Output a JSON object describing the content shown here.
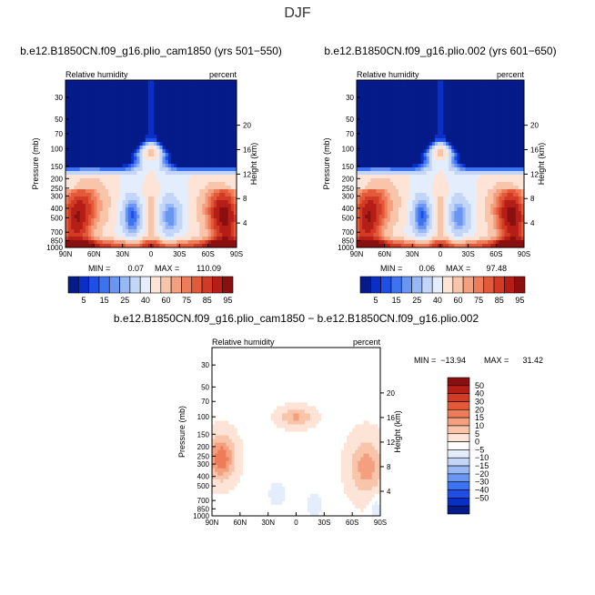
{
  "page": {
    "title": "DJF"
  },
  "chart_data": [
    {
      "type": "heatmap",
      "title": "b.e12.B1850CN.f09_g16.plio_cam1850 (yrs 501−550)",
      "left_subtitle": "Relative humidity",
      "right_subtitle": "percent",
      "xlabel": "",
      "ylabel": "Pressure (mb)",
      "ylabel_right": "Height (km)",
      "x_tick_labels": [
        "90N",
        "60N",
        "30N",
        "0",
        "30S",
        "60S",
        "90S"
      ],
      "x_tick_values": [
        90,
        60,
        30,
        0,
        -30,
        -60,
        -90
      ],
      "y_tick_labels": [
        "1000",
        "850",
        "700",
        "500",
        "400",
        "300",
        "250",
        "200",
        "150",
        "100",
        "70",
        "50",
        "30"
      ],
      "y_tick_values": [
        1000,
        850,
        700,
        500,
        400,
        300,
        250,
        200,
        150,
        100,
        70,
        50,
        30
      ],
      "height_tick_labels": [
        "4",
        "8",
        "12",
        "16",
        "20"
      ],
      "height_tick_values": [
        4,
        8,
        12,
        16,
        20
      ],
      "min_label": "MIN =",
      "min_value": "0.07",
      "max_label": "MAX =",
      "max_value": "110.09",
      "field": "full"
    },
    {
      "type": "heatmap",
      "title": "b.e12.B1850CN.f09_g16.plio.002 (yrs 601−650)",
      "left_subtitle": "Relative humidity",
      "right_subtitle": "percent",
      "xlabel": "",
      "ylabel": "Pressure (mb)",
      "ylabel_right": "Height (km)",
      "x_tick_labels": [
        "90N",
        "60N",
        "30N",
        "0",
        "30S",
        "60S",
        "90S"
      ],
      "x_tick_values": [
        90,
        60,
        30,
        0,
        -30,
        -60,
        -90
      ],
      "y_tick_labels": [
        "1000",
        "850",
        "700",
        "500",
        "400",
        "300",
        "250",
        "200",
        "150",
        "100",
        "70",
        "50",
        "30"
      ],
      "y_tick_values": [
        1000,
        850,
        700,
        500,
        400,
        300,
        250,
        200,
        150,
        100,
        70,
        50,
        30
      ],
      "height_tick_labels": [
        "4",
        "8",
        "12",
        "16",
        "20"
      ],
      "height_tick_values": [
        4,
        8,
        12,
        16,
        20
      ],
      "min_label": "MIN =",
      "min_value": "0.06",
      "max_label": "MAX =",
      "max_value": "97.48",
      "field": "full"
    },
    {
      "type": "heatmap",
      "title": "b.e12.B1850CN.f09_g16.plio_cam1850 − b.e12.B1850CN.f09_g16.plio.002",
      "left_subtitle": "Relative humidity",
      "right_subtitle": "percent",
      "xlabel": "",
      "ylabel": "Pressure (mb)",
      "ylabel_right": "Height (km)",
      "x_tick_labels": [
        "90N",
        "60N",
        "30N",
        "0",
        "30S",
        "60S",
        "90S"
      ],
      "x_tick_values": [
        90,
        60,
        30,
        0,
        -30,
        -60,
        -90
      ],
      "y_tick_labels": [
        "1000",
        "850",
        "700",
        "500",
        "400",
        "300",
        "250",
        "200",
        "150",
        "100",
        "70",
        "50",
        "30"
      ],
      "y_tick_values": [
        1000,
        850,
        700,
        500,
        400,
        300,
        250,
        200,
        150,
        100,
        70,
        50,
        30
      ],
      "height_tick_labels": [
        "4",
        "8",
        "12",
        "16",
        "20"
      ],
      "height_tick_values": [
        4,
        8,
        12,
        16,
        20
      ],
      "min_label": "MIN =",
      "min_value": "−13.94",
      "max_label": "MAX =",
      "max_value": "31.42",
      "field": "diff"
    }
  ],
  "colorbars": {
    "full": {
      "labels": [
        "5",
        "15",
        "25",
        "40",
        "60",
        "75",
        "85",
        "95"
      ],
      "colors": [
        "#051b8a",
        "#0a2fc6",
        "#1f4fe6",
        "#3d73f0",
        "#6a96f2",
        "#97b7f5",
        "#c3d6f8",
        "#e4edfb",
        "#fde4d6",
        "#f8c4aa",
        "#f4a07e",
        "#ee7c58",
        "#e35a3a",
        "#d13a24",
        "#b51e16",
        "#8a0f0f"
      ]
    },
    "diff": {
      "labels": [
        "50",
        "40",
        "30",
        "20",
        "15",
        "10",
        "5",
        "0",
        "−5",
        "−10",
        "−15",
        "−20",
        "−30",
        "−40",
        "−50"
      ],
      "colors": [
        "#8a0f0f",
        "#b51e16",
        "#d13a24",
        "#e35a3a",
        "#ee7c58",
        "#f4a07e",
        "#f8c4aa",
        "#fde4d6",
        "#ffffff",
        "#e4edfb",
        "#c3d6f8",
        "#97b7f5",
        "#6a96f2",
        "#3d73f0",
        "#1f4fe6",
        "#0a2fc6",
        "#051b8a"
      ]
    }
  }
}
